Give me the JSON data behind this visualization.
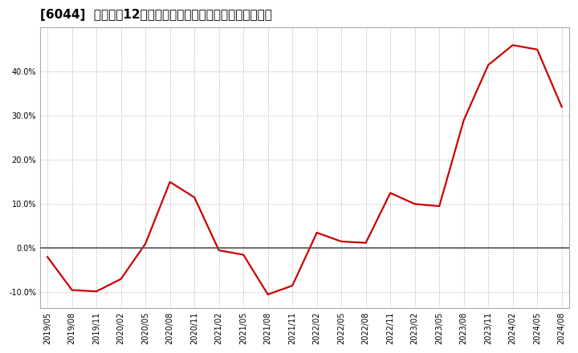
{
  "title": "[6044]  売上高の12か月移動合計の対前年同期増減率の推移",
  "x_labels": [
    "2019/05",
    "2019/08",
    "2019/11",
    "2020/02",
    "2020/05",
    "2020/08",
    "2020/11",
    "2021/02",
    "2021/05",
    "2021/08",
    "2021/11",
    "2022/02",
    "2022/05",
    "2022/08",
    "2022/11",
    "2023/02",
    "2023/05",
    "2023/08",
    "2023/11",
    "2024/02",
    "2024/05",
    "2024/08"
  ],
  "y_values": [
    -2.0,
    -9.5,
    -9.8,
    -7.0,
    1.0,
    15.0,
    11.5,
    -0.5,
    -1.5,
    -10.5,
    -8.5,
    3.5,
    1.5,
    1.2,
    12.5,
    10.0,
    9.5,
    29.0,
    41.5,
    46.0,
    45.0,
    32.0
  ],
  "line_color": "#cc0000",
  "background_color": "#ffffff",
  "plot_bg_color": "#ffffff",
  "grid_color": "#aaaaaa",
  "zero_line_color": "#555555",
  "border_color": "#aaaaaa",
  "ylim": [
    -13.5,
    50
  ],
  "yticks": [
    -10.0,
    0.0,
    10.0,
    20.0,
    30.0,
    40.0
  ],
  "title_fontsize": 11,
  "tick_fontsize": 7
}
